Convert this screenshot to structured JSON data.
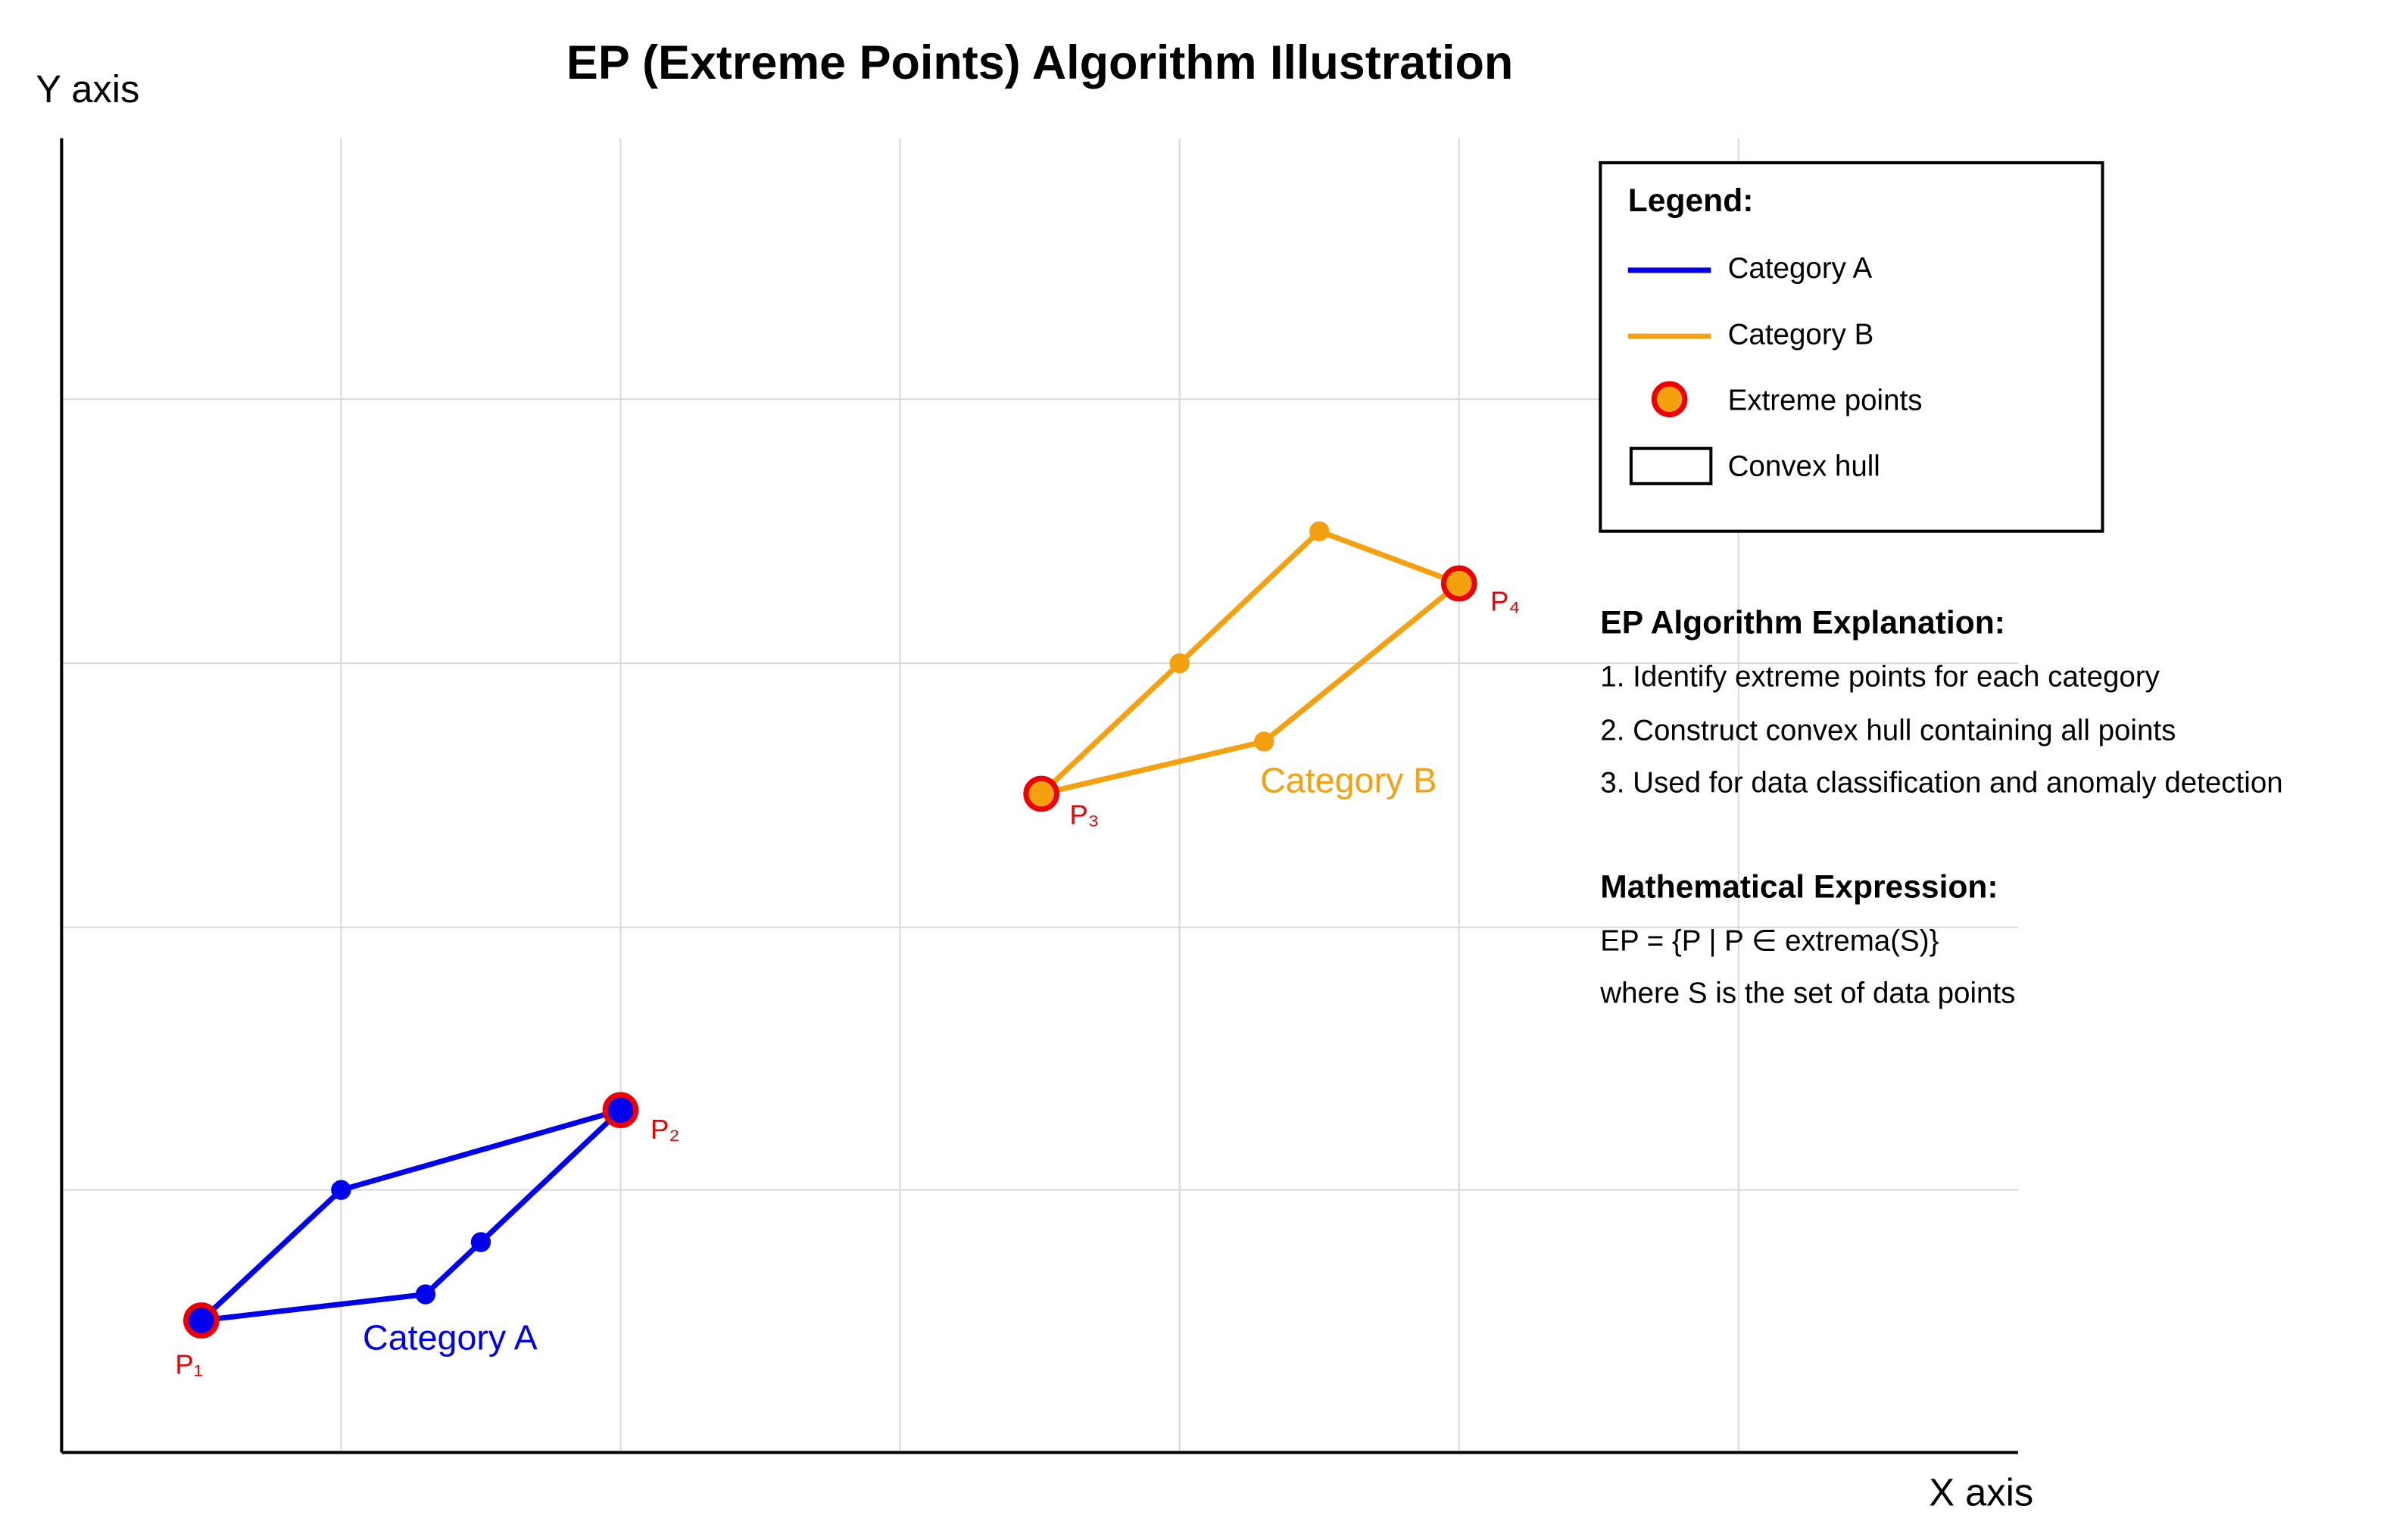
{
  "title": "EP (Extreme Points) Algorithm Illustration",
  "y_axis_label": "Y axis",
  "x_axis_label": "X axis",
  "category_a": {
    "label": "Category A",
    "points": [
      "P₁",
      "P₂"
    ]
  },
  "category_b": {
    "label": "Category B",
    "points": [
      "P₃",
      "P₄"
    ]
  },
  "legend": {
    "title": "Legend:",
    "items": [
      "Category A",
      "Category B",
      "Extreme points",
      "Convex hull"
    ]
  },
  "explanation": {
    "title": "EP Algorithm Explanation:",
    "steps": [
      "1. Identify extreme points for each category",
      "2. Construct convex hull containing all points",
      "3. Used for data classification and anomaly detection"
    ]
  },
  "math": {
    "title": "Mathematical Expression:",
    "lines": [
      "EP = {P | P ∈ extrema(S)}",
      "where S is the set of data points"
    ]
  }
}
